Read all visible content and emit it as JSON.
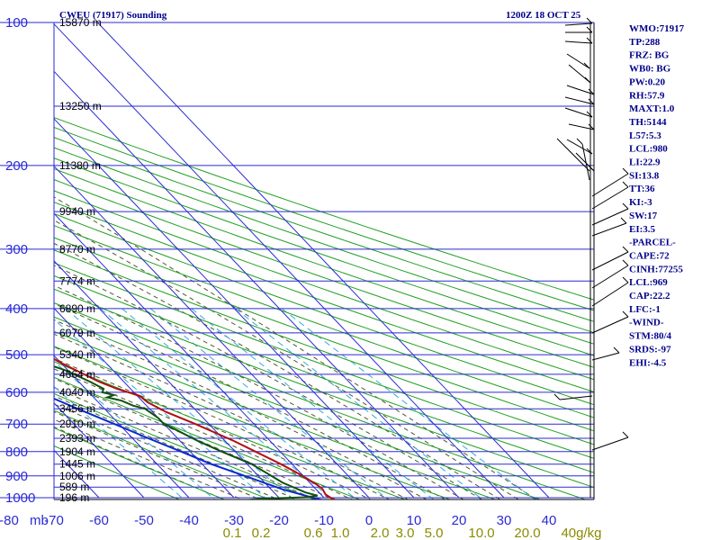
{
  "chart_data": {
    "type": "line",
    "title": "CWEU (71917) Sounding",
    "valid_time": "1200Z 18 OCT 25",
    "pressure_unit": "mb",
    "pressure_levels": [
      100,
      200,
      300,
      400,
      500,
      600,
      700,
      800,
      900,
      1000
    ],
    "height_labels": [
      {
        "p": 100,
        "label": "15870 m"
      },
      {
        "p": 150,
        "label": "13250 m"
      },
      {
        "p": 200,
        "label": "11380 m"
      },
      {
        "p": 250,
        "label": "9940 m"
      },
      {
        "p": 300,
        "label": "8770 m"
      },
      {
        "p": 350,
        "label": "7774 m"
      },
      {
        "p": 400,
        "label": "6890 m"
      },
      {
        "p": 450,
        "label": "6079 m"
      },
      {
        "p": 500,
        "label": "5340 m"
      },
      {
        "p": 550,
        "label": "4664 m"
      },
      {
        "p": 600,
        "label": "4040 m"
      },
      {
        "p": 650,
        "label": "3456 m"
      },
      {
        "p": 700,
        "label": "2910 m"
      },
      {
        "p": 750,
        "label": "2393 m"
      },
      {
        "p": 800,
        "label": "1904 m"
      },
      {
        "p": 850,
        "label": "1445 m"
      },
      {
        "p": 900,
        "label": "1006 m"
      },
      {
        "p": 950,
        "label": "589 m"
      },
      {
        "p": 1000,
        "label": "196 m"
      }
    ],
    "temperature_ticks": [
      -80,
      -70,
      -60,
      -50,
      -40,
      -30,
      -20,
      -10,
      0,
      10,
      20,
      30,
      40
    ],
    "temperature_tick_labels": [
      "-80",
      "-70",
      "-60",
      "-50",
      "-40",
      "-30",
      "-20",
      "-10",
      "0",
      "10",
      "20",
      "30",
      "40"
    ],
    "mixing_ratio_labels": [
      "0.1",
      "0.2",
      "0.6",
      "1.0",
      "2.0",
      "3.0",
      "5.0",
      "10.0",
      "20.0",
      "40g/kg"
    ],
    "temperature_profile": [
      {
        "p": 1010,
        "t": -8
      },
      {
        "p": 1000,
        "t": -8.5
      },
      {
        "p": 985,
        "t": -9
      },
      {
        "p": 960,
        "t": -8.5
      },
      {
        "p": 940,
        "t": -8.8
      },
      {
        "p": 910,
        "t": -9.8
      },
      {
        "p": 880,
        "t": -11
      },
      {
        "p": 850,
        "t": -12.5
      },
      {
        "p": 800,
        "t": -15.5
      },
      {
        "p": 760,
        "t": -18
      },
      {
        "p": 700,
        "t": -23
      },
      {
        "p": 660,
        "t": -27
      },
      {
        "p": 630,
        "t": -29
      },
      {
        "p": 610,
        "t": -29.5
      },
      {
        "p": 590,
        "t": -33
      },
      {
        "p": 570,
        "t": -35.5
      },
      {
        "p": 520,
        "t": -40
      },
      {
        "p": 470,
        "t": -44
      },
      {
        "p": 430,
        "t": -48
      },
      {
        "p": 400,
        "t": -51
      },
      {
        "p": 370,
        "t": -55
      },
      {
        "p": 340,
        "t": -59
      },
      {
        "p": 300,
        "t": -64
      },
      {
        "p": 290,
        "t": -64
      },
      {
        "p": 275,
        "t": -61
      },
      {
        "p": 260,
        "t": -60
      },
      {
        "p": 240,
        "t": -57
      },
      {
        "p": 235,
        "t": -55.5
      },
      {
        "p": 225,
        "t": -55
      },
      {
        "p": 215,
        "t": -52
      },
      {
        "p": 200,
        "t": -50
      },
      {
        "p": 180,
        "t": -49.5
      },
      {
        "p": 150,
        "t": -49.3
      },
      {
        "p": 120,
        "t": -49
      },
      {
        "p": 100,
        "t": -48
      }
    ],
    "dewpoint_profile": [
      {
        "p": 1010,
        "t": -27
      },
      {
        "p": 1005,
        "t": -24
      },
      {
        "p": 998,
        "t": -14
      },
      {
        "p": 990,
        "t": -11
      },
      {
        "p": 975,
        "t": -13
      },
      {
        "p": 930,
        "t": -16
      },
      {
        "p": 850,
        "t": -19
      },
      {
        "p": 800,
        "t": -23
      },
      {
        "p": 760,
        "t": -26
      },
      {
        "p": 720,
        "t": -28.5
      },
      {
        "p": 700,
        "t": -30
      },
      {
        "p": 680,
        "t": -30
      },
      {
        "p": 650,
        "t": -31
      },
      {
        "p": 640,
        "t": -33
      },
      {
        "p": 625,
        "t": -34.5
      },
      {
        "p": 615,
        "t": -37
      },
      {
        "p": 608,
        "t": -35
      },
      {
        "p": 600,
        "t": -37
      },
      {
        "p": 590,
        "t": -36
      },
      {
        "p": 570,
        "t": -37.5
      },
      {
        "p": 540,
        "t": -40.5
      },
      {
        "p": 520,
        "t": -44
      },
      {
        "p": 505,
        "t": -45
      },
      {
        "p": 495,
        "t": -42
      },
      {
        "p": 480,
        "t": -41
      },
      {
        "p": 450,
        "t": -45
      },
      {
        "p": 410,
        "t": -52
      },
      {
        "p": 390,
        "t": -55
      },
      {
        "p": 360,
        "t": -60
      },
      {
        "p": 320,
        "t": -67
      },
      {
        "p": 300,
        "t": -69
      },
      {
        "p": 290,
        "t": -70
      },
      {
        "p": 285,
        "t": -75
      },
      {
        "p": 280,
        "t": -76
      },
      {
        "p": 270,
        "t": -75
      },
      {
        "p": 255,
        "t": -79
      },
      {
        "p": 250,
        "t": -80
      }
    ],
    "parcel_path": [
      {
        "p": 1010,
        "t": -11
      },
      {
        "p": 1000,
        "t": -12.5
      },
      {
        "p": 960,
        "t": -17.5
      },
      {
        "p": 900,
        "t": -23
      },
      {
        "p": 850,
        "t": -28
      },
      {
        "p": 800,
        "t": -32
      },
      {
        "p": 750,
        "t": -36.5
      },
      {
        "p": 700,
        "t": -41
      },
      {
        "p": 650,
        "t": -46
      },
      {
        "p": 600,
        "t": -51
      },
      {
        "p": 550,
        "t": -56.5
      },
      {
        "p": 500,
        "t": -62
      },
      {
        "p": 450,
        "t": -68
      },
      {
        "p": 400,
        "t": -75
      },
      {
        "p": 350,
        "t": -83
      }
    ]
  },
  "indices": [
    "WMO:71917",
    "TP:288",
    "FRZ: BG",
    "WB0: BG",
    "PW:0.20",
    "RH:57.9",
    "MAXT:1.0",
    "TH:5144",
    "L57:5.3",
    "LCL:980",
    "LI:22.9",
    "SI:13.8",
    "TT:36",
    "KI:-3",
    "SW:17",
    "EI:3.5",
    "-PARCEL-",
    "CAPE:72",
    "CINH:77255",
    "LCL:969",
    "CAP:22.2",
    "LFC:-1",
    "-WIND-",
    "STM:80/4",
    "SRDS:-97",
    "EHI:-4.5"
  ],
  "colors": {
    "grid": "#2a2ad6",
    "isotherm": "#2a2ad6",
    "dry_adiabat": "#22a022",
    "moist_adiabat": "#555533",
    "mixing_ratio": "#33aadd",
    "temperature": "#b01010",
    "dewpoint": "#105010",
    "parcel": "#0a2acc",
    "text": "#00008b",
    "mixing_label": "#8b8b00"
  }
}
